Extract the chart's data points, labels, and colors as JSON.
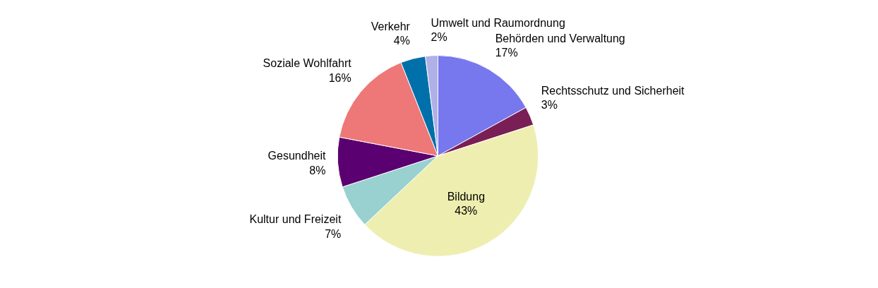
{
  "chart_data": {
    "type": "pie",
    "categories": [
      "Behörden und Verwaltung",
      "Rechtsschutz und Sicherheit",
      "Bildung",
      "Kultur und Freizeit",
      "Gesundheit",
      "Soziale Wohlfahrt",
      "Verkehr",
      "Umwelt und Raumordnung"
    ],
    "values": [
      17,
      3,
      43,
      7,
      8,
      16,
      4,
      2
    ],
    "value_labels": [
      "17%",
      "3%",
      "43%",
      "7%",
      "8%",
      "16%",
      "4%",
      "2%"
    ],
    "colors": [
      "#7777ee",
      "#7a1f55",
      "#eeeeb0",
      "#99d0d0",
      "#5a0070",
      "#ee7777",
      "#0070aa",
      "#b0b0e8"
    ]
  }
}
